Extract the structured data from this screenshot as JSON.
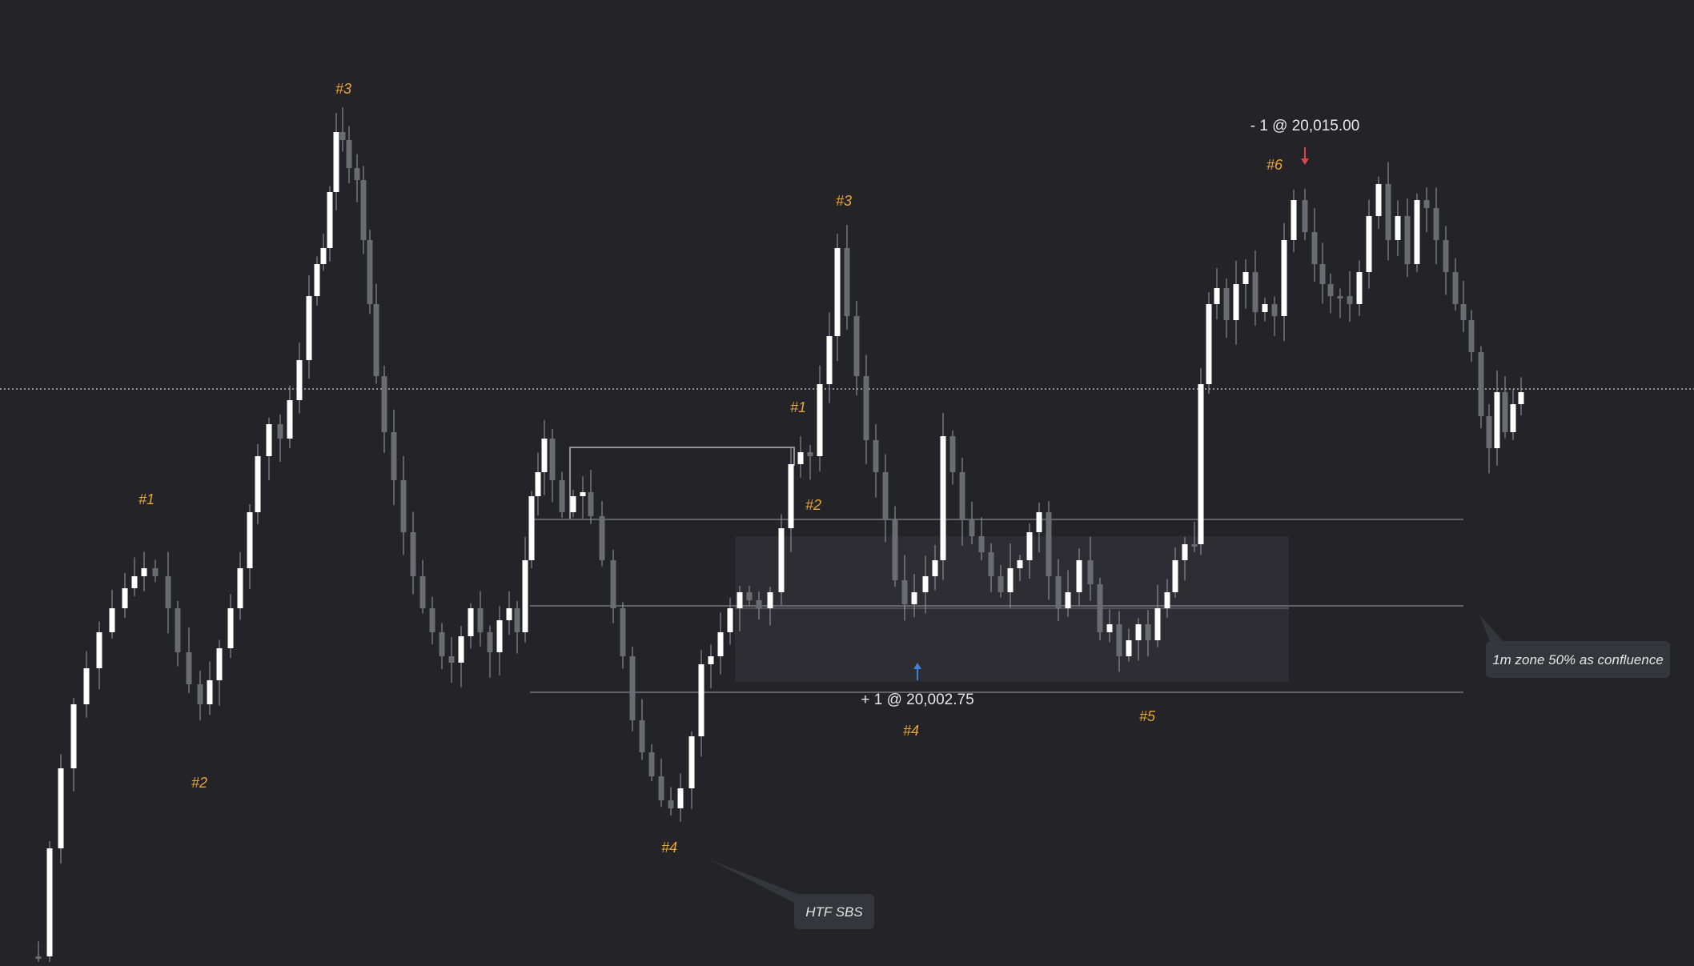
{
  "colors": {
    "background": "#232328",
    "bull_candle": "#ffffff",
    "bear_candle": "#6b6c72",
    "wick": "#8a8b90",
    "wave_label": "#e8a63a",
    "sell_arrow": "#e0424a",
    "buy_arrow": "#3f7fd8",
    "level_line": "#76777c",
    "price_line": "#b8b8bc",
    "zone_fill": "#2f2f35",
    "callout_bg": "#35363b"
  },
  "chart_data": {
    "type": "candlestick",
    "title": "",
    "xlabel": "",
    "ylabel": "",
    "price_scale": "unlabeled (no axes shown)",
    "grid": false,
    "legend": "none",
    "trades": [
      {
        "id": "buy",
        "label": "+ 1 @ 20,002.75",
        "side": "buy",
        "marker": "up-arrow"
      },
      {
        "id": "sell",
        "label": "- 1 @ 20,015.00",
        "side": "sell",
        "marker": "down-arrow"
      }
    ],
    "wave_labels": [
      "#1",
      "#2",
      "#3",
      "#1",
      "#2",
      "#3",
      "#4",
      "#4",
      "#5",
      "#6"
    ],
    "callouts": [
      {
        "id": "htf",
        "text": "HTF SBS"
      },
      {
        "id": "zone",
        "text": "1m zone 50% as confluence"
      }
    ],
    "annotations": [
      "current-price dotted line",
      "shaded 1m demand zone",
      "three horizontal zone levels (top / 50% / bottom)",
      "structure bracket line"
    ]
  }
}
